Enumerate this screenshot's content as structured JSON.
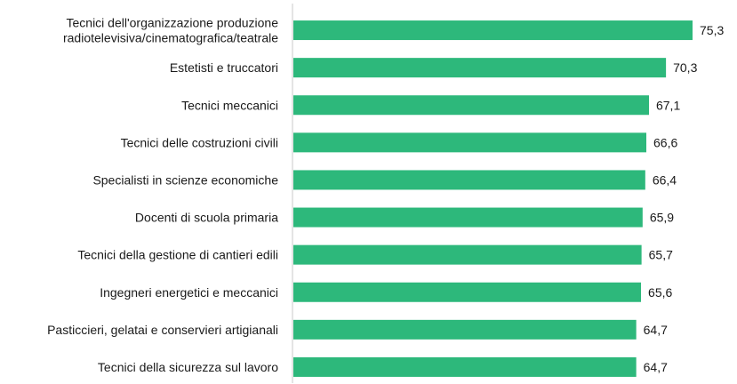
{
  "chart_data": {
    "type": "bar",
    "orientation": "horizontal",
    "categories": [
      "Tecnici dell'organizzazione produzione radiotelevisiva/cinematografica/teatrale",
      "Estetisti e truccatori",
      "Tecnici meccanici",
      "Tecnici delle costruzioni civili",
      "Specialisti in scienze economiche",
      "Docenti di scuola primaria",
      "Tecnici della gestione di cantieri edili",
      "Ingegneri energetici e meccanici",
      "Pasticcieri, gelatai e conservieri artigianali",
      "Tecnici della sicurezza sul lavoro"
    ],
    "category_lines": [
      [
        "Tecnici dell'organizzazione produzione",
        "radiotelevisiva/cinematografica/teatrale"
      ],
      [
        "Estetisti e truccatori"
      ],
      [
        "Tecnici meccanici"
      ],
      [
        "Tecnici delle costruzioni civili"
      ],
      [
        "Specialisti in scienze economiche"
      ],
      [
        "Docenti di scuola primaria"
      ],
      [
        "Tecnici della gestione di cantieri edili"
      ],
      [
        "Ingegneri energetici e meccanici"
      ],
      [
        "Pasticcieri, gelatai e conservieri artigianali"
      ],
      [
        "Tecnici della sicurezza sul lavoro"
      ]
    ],
    "values": [
      75.3,
      70.3,
      67.1,
      66.6,
      66.4,
      65.9,
      65.7,
      65.6,
      64.7,
      64.7
    ],
    "value_labels": [
      "75,3",
      "70,3",
      "67,1",
      "66,6",
      "66,4",
      "65,9",
      "65,7",
      "65,6",
      "64,7",
      "64,7"
    ],
    "xlim": [
      0,
      75.3
    ],
    "title": "",
    "xlabel": "",
    "ylabel": "",
    "grid": false,
    "legend": "none",
    "bar_color": "#2db87b",
    "axis_color": "#c8c8c8",
    "text_color": "#1a1a1a"
  }
}
